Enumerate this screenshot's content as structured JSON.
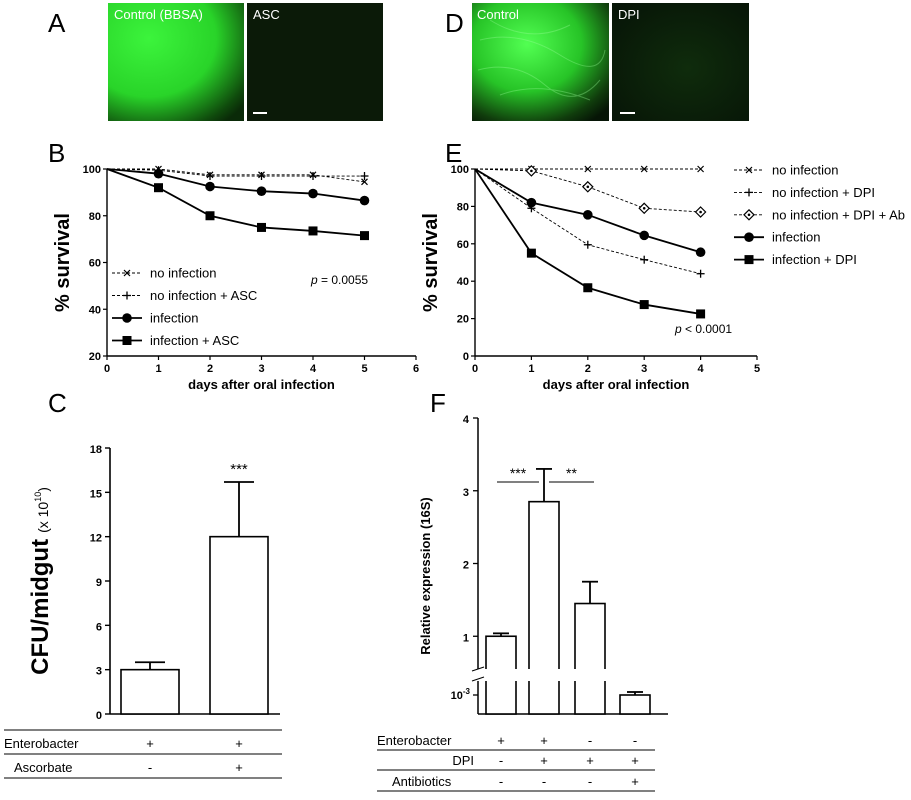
{
  "panels": {
    "A": {
      "letter": "A",
      "images": [
        {
          "label": "Control (BBSA)",
          "color": "#2fe52f"
        },
        {
          "label": "ASC",
          "color": "#0b1a08"
        }
      ]
    },
    "D": {
      "letter": "D",
      "images": [
        {
          "label": "Control",
          "color": "#36d636"
        },
        {
          "label": "DPI",
          "color": "#0c200a"
        }
      ]
    },
    "B": {
      "letter": "B"
    },
    "E": {
      "letter": "E"
    },
    "C": {
      "letter": "C"
    },
    "F": {
      "letter": "F"
    }
  },
  "chart_data": [
    {
      "id": "B",
      "type": "line",
      "xlabel": "days after oral infection",
      "ylabel": "% survival",
      "xlim": [
        0,
        6
      ],
      "ylim": [
        20,
        100
      ],
      "xticks": [
        0,
        1,
        2,
        3,
        4,
        5,
        6
      ],
      "yticks": [
        20,
        40,
        60,
        80,
        100
      ],
      "annotation": {
        "prefix": "p",
        "text": " = 0.0055"
      },
      "legend_position": "bottom-left",
      "series": [
        {
          "name": "no infection",
          "marker": "x",
          "style": "dashed",
          "x": [
            0,
            1,
            2,
            3,
            4,
            5
          ],
          "y": [
            100,
            100,
            97.5,
            97.5,
            97.5,
            94.5
          ]
        },
        {
          "name": "no infection + ASC",
          "marker": "plus",
          "style": "dashed",
          "x": [
            0,
            1,
            2,
            3,
            4,
            5
          ],
          "y": [
            100,
            99.5,
            97,
            97,
            97,
            97
          ]
        },
        {
          "name": "infection",
          "marker": "circle",
          "style": "solid",
          "x": [
            0,
            1,
            2,
            3,
            4,
            5
          ],
          "y": [
            100,
            98,
            92.5,
            90.5,
            89.5,
            86.5
          ]
        },
        {
          "name": "infection + ASC",
          "marker": "square",
          "style": "solid",
          "x": [
            0,
            1,
            2,
            3,
            4,
            5
          ],
          "y": [
            100,
            92,
            80,
            75,
            73.5,
            71.5
          ]
        }
      ]
    },
    {
      "id": "E",
      "type": "line",
      "xlabel": "days after oral infection",
      "ylabel": "% survival",
      "xlim": [
        0,
        5
      ],
      "ylim": [
        0,
        100
      ],
      "xticks": [
        0,
        1,
        2,
        3,
        4,
        5
      ],
      "yticks": [
        0,
        20,
        40,
        60,
        80,
        100
      ],
      "annotation": {
        "prefix": "p",
        "text": " < 0.0001"
      },
      "legend_position": "top-right",
      "series": [
        {
          "name": "no infection",
          "marker": "x",
          "style": "dashed",
          "x": [
            0,
            1,
            2,
            3,
            4
          ],
          "y": [
            100,
            100,
            100,
            100,
            100
          ]
        },
        {
          "name": "no infection + DPI",
          "marker": "plus",
          "style": "dashed",
          "x": [
            0,
            1,
            2,
            3,
            4
          ],
          "y": [
            100,
            79,
            59.5,
            51.5,
            44
          ]
        },
        {
          "name": "no infection + DPI + Ab",
          "marker": "diamond",
          "style": "dashed",
          "x": [
            0,
            1,
            2,
            3,
            4
          ],
          "y": [
            100,
            99,
            90.5,
            79,
            77
          ]
        },
        {
          "name": "infection",
          "marker": "circle",
          "style": "solid",
          "x": [
            0,
            1,
            2,
            3,
            4
          ],
          "y": [
            100,
            82,
            75.5,
            64.5,
            55.5
          ]
        },
        {
          "name": "infection + DPI",
          "marker": "square",
          "style": "solid",
          "x": [
            0,
            1,
            2,
            3,
            4
          ],
          "y": [
            100,
            55,
            36.5,
            27.5,
            22.5
          ]
        }
      ]
    },
    {
      "id": "C",
      "type": "bar",
      "ylabel": "CFU/midgut",
      "ylabel_unit": "(x 10",
      "ylabel_exp": "10",
      "ylabel_close": ")",
      "ylim": [
        0,
        18
      ],
      "yticks": [
        0,
        3,
        6,
        9,
        12,
        15,
        18
      ],
      "values": [
        3,
        12
      ],
      "errors": [
        0.5,
        3.7
      ],
      "significance": [
        {
          "bar": 1,
          "label": "***"
        }
      ],
      "conditions": [
        {
          "name": "Enterobacter",
          "values": [
            "+",
            "+"
          ]
        },
        {
          "name": "Ascorbate",
          "values": [
            "-",
            "+"
          ]
        }
      ]
    },
    {
      "id": "F",
      "type": "bar",
      "ylabel": "Relative expression (16S)",
      "ylim": [
        0,
        4
      ],
      "yticks": [
        1,
        2,
        3,
        4
      ],
      "ytick_break_label": "10",
      "ytick_break_exp": "-3",
      "values": [
        1.0,
        2.85,
        1.45,
        0.001
      ],
      "errors": [
        0.04,
        0.45,
        0.3,
        0.0003
      ],
      "significance": [
        {
          "from": 0,
          "to": 1,
          "label": "***"
        },
        {
          "from": 1,
          "to": 2,
          "label": "**"
        }
      ],
      "conditions": [
        {
          "name": "Enterobacter",
          "values": [
            "+",
            "+",
            "-",
            "-"
          ]
        },
        {
          "name": "DPI",
          "values": [
            "-",
            "+",
            "+",
            "+"
          ]
        },
        {
          "name": "Antibiotics",
          "values": [
            "-",
            "-",
            "-",
            "+"
          ]
        }
      ]
    }
  ]
}
